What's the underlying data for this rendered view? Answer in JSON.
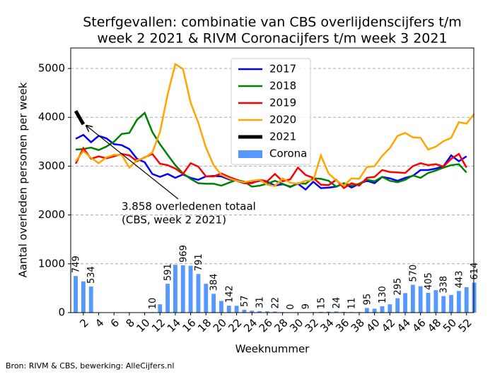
{
  "chart_data": {
    "type": "line",
    "title": [
      "Sterfgevallen: combinatie van CBS overlijdenscijfers t/m",
      "week 2 2021 & RIVM Coronacijfers t/m week 3 2021"
    ],
    "xlabel": "Weeknummer",
    "ylabel": "Aantal overleden personen per week",
    "source": "Bron: RIVM & CBS, bewerking: AlleCijfers.nl",
    "annotation": [
      "3.858 overledenen totaal",
      "(CBS, week 2 2021)"
    ],
    "x": [
      1,
      2,
      3,
      4,
      5,
      6,
      7,
      8,
      9,
      10,
      11,
      12,
      13,
      14,
      15,
      16,
      17,
      18,
      19,
      20,
      21,
      22,
      23,
      24,
      25,
      26,
      27,
      28,
      29,
      30,
      31,
      32,
      33,
      34,
      35,
      36,
      37,
      38,
      39,
      40,
      41,
      42,
      43,
      44,
      45,
      46,
      47,
      48,
      49,
      50,
      51,
      52,
      53
    ],
    "xlim": [
      0.35,
      52.95
    ],
    "xticks": [
      2,
      4,
      6,
      8,
      10,
      12,
      14,
      16,
      18,
      20,
      22,
      24,
      26,
      28,
      30,
      32,
      34,
      36,
      38,
      40,
      42,
      44,
      46,
      48,
      50,
      52
    ],
    "ylim": [
      0,
      5420
    ],
    "yticks": [
      0,
      1000,
      2000,
      3000,
      4000,
      5000
    ],
    "grid": true,
    "legend": "upper center",
    "series": [
      {
        "name": "2017",
        "color": "#0000ff",
        "values": [
          3560,
          3640,
          3490,
          3620,
          3570,
          3450,
          3430,
          3350,
          3150,
          3080,
          2840,
          2780,
          2840,
          2760,
          2830,
          2760,
          2720,
          2790,
          2800,
          2790,
          2730,
          2700,
          2650,
          2660,
          2700,
          2680,
          2600,
          2630,
          2580,
          2640,
          2520,
          2680,
          2550,
          2560,
          2580,
          2650,
          2560,
          2640,
          2700,
          2650,
          2780,
          2750,
          2700,
          2760,
          2800,
          2920,
          2920,
          2950,
          3000,
          3220,
          3100,
          3200,
          null
        ]
      },
      {
        "name": "2018",
        "color": "#008000",
        "values": [
          3340,
          3350,
          3380,
          3330,
          3400,
          3500,
          3660,
          3680,
          3950,
          4090,
          3700,
          3450,
          3230,
          3020,
          2850,
          2740,
          2650,
          2640,
          2640,
          2600,
          2660,
          2720,
          2680,
          2580,
          2600,
          2640,
          2700,
          2640,
          2570,
          2650,
          2640,
          2750,
          2740,
          2700,
          2580,
          2650,
          2600,
          2640,
          2720,
          2690,
          2780,
          2700,
          2670,
          2720,
          2810,
          2760,
          2860,
          2910,
          2970,
          3020,
          3040,
          2870,
          null
        ]
      },
      {
        "name": "2019",
        "color": "#ff0000",
        "values": [
          3050,
          3370,
          3150,
          3200,
          3160,
          3200,
          3250,
          3220,
          3100,
          3180,
          3250,
          3050,
          3020,
          2950,
          2840,
          3060,
          2990,
          2790,
          2790,
          2850,
          2780,
          2720,
          2650,
          2650,
          2720,
          2690,
          2840,
          2690,
          2730,
          2970,
          2820,
          2760,
          2620,
          2610,
          2720,
          2550,
          2650,
          2600,
          2760,
          2780,
          2920,
          2880,
          2870,
          2860,
          3000,
          3060,
          3020,
          3040,
          2990,
          3150,
          3250,
          2970,
          null
        ]
      },
      {
        "name": "2020",
        "color": "#ffa500",
        "values": [
          3100,
          3310,
          3170,
          3060,
          3180,
          3230,
          3230,
          2970,
          3120,
          3170,
          3280,
          3700,
          4470,
          5090,
          4990,
          4300,
          3890,
          3380,
          3020,
          2820,
          2750,
          2700,
          2670,
          2700,
          2720,
          2620,
          2590,
          2750,
          2660,
          2640,
          2700,
          2710,
          3220,
          2850,
          2710,
          2600,
          2750,
          2740,
          2980,
          3000,
          3210,
          3370,
          3620,
          3680,
          3590,
          3580,
          3340,
          3400,
          3510,
          3580,
          3900,
          3870,
          4070
        ]
      },
      {
        "name": "2021",
        "color": "#000000",
        "values": [
          4130,
          3858,
          null,
          null,
          null,
          null,
          null,
          null,
          null,
          null,
          null,
          null,
          null,
          null,
          null,
          null,
          null,
          null,
          null,
          null,
          null,
          null,
          null,
          null,
          null,
          null,
          null,
          null,
          null,
          null,
          null,
          null,
          null,
          null,
          null,
          null,
          null,
          null,
          null,
          null,
          null,
          null,
          null,
          null,
          null,
          null,
          null,
          null,
          null,
          null,
          null,
          null,
          null
        ]
      },
      {
        "name": "Corona",
        "type": "bar",
        "color": "#5599ff",
        "values": [
          749,
          640,
          534,
          0,
          0,
          0,
          0,
          0,
          0,
          0,
          10,
          170,
          591,
          980,
          969,
          960,
          791,
          590,
          384,
          240,
          142,
          140,
          57,
          40,
          31,
          25,
          22,
          10,
          0,
          5,
          9,
          10,
          15,
          20,
          24,
          15,
          11,
          10,
          95,
          80,
          130,
          170,
          295,
          400,
          570,
          540,
          405,
          460,
          338,
          360,
          443,
          520,
          614
        ],
        "value_labels": [
          "749",
          null,
          "534",
          null,
          null,
          null,
          null,
          null,
          null,
          null,
          "10",
          null,
          "591",
          null,
          "969",
          null,
          "791",
          null,
          "384",
          null,
          "142",
          null,
          "57",
          null,
          "31",
          null,
          "22",
          null,
          "0",
          null,
          "9",
          null,
          "15",
          null,
          "24",
          null,
          "11",
          null,
          "95",
          null,
          "130",
          null,
          "295",
          null,
          "570",
          null,
          "405",
          null,
          "338",
          null,
          "443",
          null,
          "614"
        ]
      }
    ]
  }
}
